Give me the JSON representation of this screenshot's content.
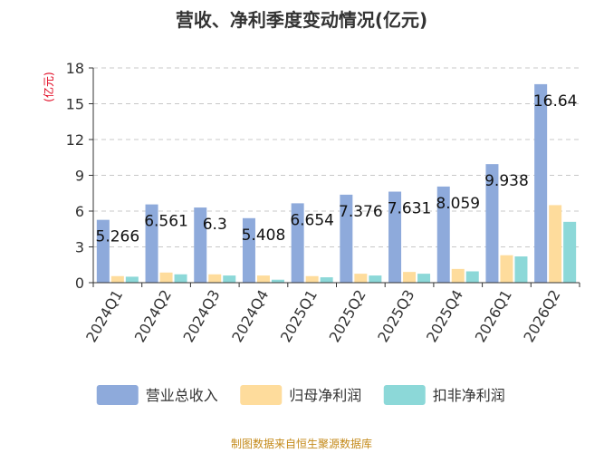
{
  "chart_data": {
    "type": "bar",
    "title": "营收、净利季度变动情况(亿元)",
    "ylabel": "(亿元)",
    "ylim": [
      0,
      18
    ],
    "yticks": [
      0,
      3,
      6,
      9,
      12,
      15,
      18
    ],
    "grid": true,
    "legend_position": "bottom",
    "categories": [
      "2024Q1",
      "2024Q2",
      "2024Q3",
      "2024Q4",
      "2025Q1",
      "2025Q2",
      "2025Q3",
      "2025Q4",
      "2026Q1",
      "2026Q2"
    ],
    "series": [
      {
        "name": "营业总收入",
        "color": "#8eaadb",
        "values": [
          5.266,
          6.561,
          6.3,
          5.408,
          6.654,
          7.376,
          7.631,
          8.059,
          9.938,
          16.64
        ],
        "labels": [
          "5.266",
          "6.561",
          "6.3",
          "5.408",
          "6.654",
          "7.376",
          "7.631",
          "8.059",
          "9.938",
          "16.64"
        ]
      },
      {
        "name": "归母净利润",
        "color": "#fedc9c",
        "values": [
          0.55,
          0.85,
          0.7,
          0.6,
          0.55,
          0.75,
          0.9,
          1.15,
          2.3,
          6.5
        ]
      },
      {
        "name": "扣非净利润",
        "color": "#8cd8d8",
        "values": [
          0.5,
          0.7,
          0.6,
          0.25,
          0.45,
          0.6,
          0.75,
          0.95,
          2.2,
          5.1
        ]
      }
    ],
    "source": "制图数据来自恒生聚源数据库"
  }
}
